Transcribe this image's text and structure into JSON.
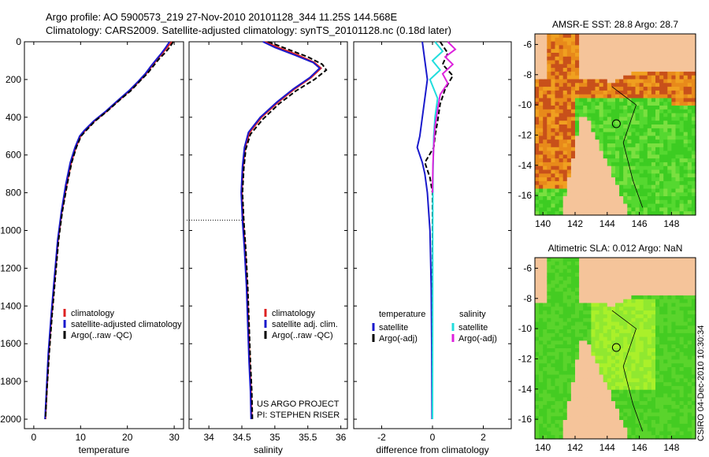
{
  "figure": {
    "title_line1": "Argo profile: AO 5900573_219 27-Nov-2010 20101128_344 11.25S 144.568E",
    "title_line2": "Climatology: CARS2009. Satellite-adjusted climatology: synTS_20101128.nc (0.18d later)",
    "side_label": "CSIRO 04-Dec-2010 10:30:34",
    "project_line1": "US ARGO PROJECT",
    "project_line2": "PI: STEPHEN RISER"
  },
  "colors": {
    "climatology": "#dd2222",
    "satellite": "#1a1acc",
    "argo": "#000000",
    "satellite_sal": "#22dddd",
    "argo_sal": "#dd22dd",
    "land": "#f5c49a",
    "sea_warm": "#e07a14",
    "sea_green": "#33cc22"
  },
  "chart_data": [
    {
      "type": "line",
      "id": "temperature",
      "xlabel": "temperature",
      "ylabel": "",
      "xlim": [
        -2,
        32
      ],
      "ylim": [
        0,
        2050
      ],
      "xticks": [
        "0",
        "10",
        "20",
        "30"
      ],
      "xtick_values": [
        0,
        10,
        20,
        30
      ],
      "yticks": [
        "0",
        "200",
        "400",
        "600",
        "800",
        "1000",
        "1200",
        "1400",
        "1600",
        "1800",
        "2000"
      ],
      "ytick_values": [
        0,
        200,
        400,
        600,
        800,
        1000,
        1200,
        1400,
        1600,
        1800,
        2000
      ],
      "legend": [
        "climatology",
        "satellite-adjusted climatology",
        "Argo(..raw -QC)"
      ],
      "series": [
        {
          "name": "climatology",
          "color_key": "climatology",
          "dash": false,
          "points": [
            [
              29.5,
              0
            ],
            [
              28.5,
              30
            ],
            [
              27.5,
              60
            ],
            [
              26.5,
              90
            ],
            [
              25.2,
              130
            ],
            [
              24.0,
              170
            ],
            [
              22.5,
              210
            ],
            [
              20.5,
              260
            ],
            [
              18.2,
              310
            ],
            [
              15.5,
              370
            ],
            [
              13.0,
              420
            ],
            [
              11.0,
              470
            ],
            [
              10.0,
              500
            ],
            [
              9.0,
              560
            ],
            [
              8.0,
              640
            ],
            [
              7.0,
              760
            ],
            [
              6.0,
              900
            ],
            [
              5.2,
              1050
            ],
            [
              4.5,
              1250
            ],
            [
              3.8,
              1450
            ],
            [
              3.2,
              1650
            ],
            [
              2.8,
              1850
            ],
            [
              2.5,
              2000
            ]
          ]
        },
        {
          "name": "satellite-adjusted climatology",
          "color_key": "satellite",
          "dash": false,
          "points": [
            [
              29.0,
              0
            ],
            [
              28.2,
              30
            ],
            [
              27.3,
              60
            ],
            [
              26.3,
              90
            ],
            [
              25.0,
              130
            ],
            [
              23.8,
              170
            ],
            [
              22.3,
              210
            ],
            [
              20.3,
              260
            ],
            [
              18.0,
              310
            ],
            [
              15.3,
              370
            ],
            [
              12.8,
              420
            ],
            [
              10.8,
              470
            ],
            [
              9.8,
              500
            ],
            [
              8.8,
              560
            ],
            [
              7.8,
              640
            ],
            [
              6.8,
              760
            ],
            [
              5.9,
              900
            ],
            [
              5.1,
              1050
            ],
            [
              4.4,
              1250
            ],
            [
              3.7,
              1450
            ],
            [
              3.1,
              1650
            ],
            [
              2.7,
              1850
            ],
            [
              2.4,
              2000
            ]
          ]
        },
        {
          "name": "Argo(..raw -QC)",
          "color_key": "argo",
          "dash": true,
          "points": [
            [
              29.8,
              0
            ],
            [
              29.0,
              30
            ],
            [
              28.0,
              60
            ],
            [
              26.8,
              90
            ],
            [
              25.5,
              130
            ],
            [
              24.2,
              170
            ],
            [
              22.6,
              210
            ],
            [
              20.7,
              260
            ],
            [
              18.3,
              310
            ],
            [
              15.6,
              370
            ],
            [
              13.1,
              420
            ],
            [
              11.2,
              470
            ],
            [
              10.1,
              500
            ],
            [
              9.1,
              560
            ],
            [
              8.1,
              640
            ],
            [
              7.1,
              760
            ],
            [
              6.1,
              900
            ],
            [
              5.3,
              1050
            ],
            [
              4.6,
              1250
            ],
            [
              3.9,
              1450
            ],
            [
              3.3,
              1650
            ],
            [
              2.8,
              1850
            ],
            [
              2.5,
              2000
            ]
          ]
        }
      ]
    },
    {
      "type": "line",
      "id": "salinity",
      "xlabel": "salinity",
      "xlim": [
        33.7,
        36.1
      ],
      "ylim": [
        0,
        2050
      ],
      "xticks": [
        "34",
        "34.5",
        "35",
        "35.5",
        "36"
      ],
      "xtick_values": [
        34,
        34.5,
        35,
        35.5,
        36
      ],
      "legend": [
        "climatology",
        "satellite adj. clim.",
        "Argo(..raw -QC)"
      ],
      "ref_depth": 945,
      "series": [
        {
          "name": "climatology",
          "color_key": "climatology",
          "dash": false,
          "points": [
            [
              34.85,
              0
            ],
            [
              35.05,
              30
            ],
            [
              35.35,
              70
            ],
            [
              35.6,
              110
            ],
            [
              35.7,
              140
            ],
            [
              35.55,
              190
            ],
            [
              35.3,
              250
            ],
            [
              35.05,
              320
            ],
            [
              34.8,
              400
            ],
            [
              34.62,
              480
            ],
            [
              34.55,
              560
            ],
            [
              34.52,
              660
            ],
            [
              34.5,
              800
            ],
            [
              34.52,
              950
            ],
            [
              34.55,
              1100
            ],
            [
              34.58,
              1300
            ],
            [
              34.6,
              1500
            ],
            [
              34.62,
              1700
            ],
            [
              34.64,
              1850
            ],
            [
              34.65,
              2000
            ]
          ]
        },
        {
          "name": "satellite adj. clim.",
          "color_key": "satellite",
          "dash": false,
          "points": [
            [
              34.82,
              0
            ],
            [
              35.0,
              30
            ],
            [
              35.3,
              70
            ],
            [
              35.58,
              110
            ],
            [
              35.68,
              140
            ],
            [
              35.53,
              190
            ],
            [
              35.28,
              250
            ],
            [
              35.03,
              320
            ],
            [
              34.78,
              400
            ],
            [
              34.6,
              480
            ],
            [
              34.54,
              560
            ],
            [
              34.51,
              660
            ],
            [
              34.49,
              800
            ],
            [
              34.51,
              950
            ],
            [
              34.54,
              1100
            ],
            [
              34.57,
              1300
            ],
            [
              34.59,
              1500
            ],
            [
              34.61,
              1700
            ],
            [
              34.63,
              1850
            ],
            [
              34.64,
              2000
            ]
          ]
        },
        {
          "name": "Argo(..raw -QC)",
          "color_key": "argo",
          "dash": true,
          "points": [
            [
              34.9,
              0
            ],
            [
              35.2,
              40
            ],
            [
              35.5,
              80
            ],
            [
              35.72,
              120
            ],
            [
              35.78,
              150
            ],
            [
              35.6,
              200
            ],
            [
              35.32,
              260
            ],
            [
              35.06,
              330
            ],
            [
              34.82,
              410
            ],
            [
              34.63,
              490
            ],
            [
              34.56,
              570
            ],
            [
              34.53,
              670
            ],
            [
              34.51,
              800
            ],
            [
              34.53,
              950
            ],
            [
              34.56,
              1100
            ],
            [
              34.59,
              1300
            ],
            [
              34.61,
              1500
            ],
            [
              34.63,
              1700
            ],
            [
              34.65,
              1850
            ],
            [
              34.66,
              2000
            ]
          ]
        }
      ]
    },
    {
      "type": "line",
      "id": "difference",
      "xlabel": "difference from climatology",
      "xlim": [
        -3.1,
        3.1
      ],
      "ylim": [
        0,
        2050
      ],
      "xticks": [
        "-2",
        "0",
        "2"
      ],
      "xtick_values": [
        -2,
        0,
        2
      ],
      "legend_temperature_title": "temperature",
      "legend_temperature": [
        "satellite",
        "Argo(-adj)"
      ],
      "legend_salinity_title": "salinity",
      "legend_salinity": [
        "satellite",
        "Argo(-adj)"
      ],
      "series": [
        {
          "name": "temperature satellite",
          "color_key": "satellite",
          "dash": false,
          "points": [
            [
              -0.4,
              0
            ],
            [
              -0.3,
              100
            ],
            [
              -0.2,
              200
            ],
            [
              -0.3,
              300
            ],
            [
              -0.4,
              400
            ],
            [
              -0.5,
              500
            ],
            [
              -0.6,
              560
            ],
            [
              -0.4,
              640
            ],
            [
              -0.3,
              700
            ],
            [
              -0.2,
              800
            ],
            [
              -0.1,
              1000
            ],
            [
              -0.05,
              1300
            ],
            [
              -0.03,
              1600
            ],
            [
              -0.02,
              2000
            ]
          ]
        },
        {
          "name": "temperature Argo(-adj)",
          "color_key": "argo",
          "dash": true,
          "points": [
            [
              0.3,
              0
            ],
            [
              0.6,
              60
            ],
            [
              0.4,
              120
            ],
            [
              0.8,
              180
            ],
            [
              0.5,
              250
            ],
            [
              0.3,
              330
            ],
            [
              0.2,
              420
            ],
            [
              0.1,
              500
            ],
            [
              0.05,
              560
            ],
            [
              -0.3,
              640
            ],
            [
              -0.1,
              720
            ],
            [
              0.0,
              800
            ],
            [
              0.0,
              1000
            ],
            [
              0.0,
              2000
            ]
          ]
        },
        {
          "name": "salinity satellite",
          "color_key": "satellite_sal",
          "dash": false,
          "points": [
            [
              0.1,
              0
            ],
            [
              0.4,
              50
            ],
            [
              0.0,
              100
            ],
            [
              0.3,
              150
            ],
            [
              -0.1,
              200
            ],
            [
              0.2,
              300
            ],
            [
              0.1,
              400
            ],
            [
              0.05,
              500
            ],
            [
              0.02,
              700
            ],
            [
              0.01,
              1000
            ],
            [
              0.0,
              2000
            ]
          ]
        },
        {
          "name": "salinity Argo(-adj)",
          "color_key": "argo_sal",
          "dash": false,
          "points": [
            [
              0.6,
              0
            ],
            [
              0.9,
              40
            ],
            [
              0.5,
              80
            ],
            [
              0.8,
              120
            ],
            [
              0.4,
              170
            ],
            [
              0.6,
              220
            ],
            [
              0.3,
              280
            ],
            [
              0.2,
              360
            ],
            [
              0.1,
              450
            ],
            [
              0.05,
              550
            ],
            [
              0.02,
              650
            ],
            [
              0.0,
              800
            ]
          ]
        }
      ]
    }
  ],
  "maps": [
    {
      "id": "sst",
      "title": "AMSR-E SST: 28.8 Argo: 28.7",
      "xticks": [
        "140",
        "142",
        "144",
        "146",
        "148"
      ],
      "yticks": [
        "-6",
        "-8",
        "-10",
        "-12",
        "-14",
        "-16"
      ],
      "xlim": [
        139.5,
        149.5
      ],
      "ylim": [
        -17.3,
        -5.3
      ],
      "profile_lon": 144.568,
      "profile_lat": -11.25,
      "style": "sst"
    },
    {
      "id": "sla",
      "title": "Altimetric SLA: 0.012 Argo: NaN",
      "xticks": [
        "140",
        "142",
        "144",
        "146",
        "148"
      ],
      "yticks": [
        "-6",
        "-8",
        "-10",
        "-12",
        "-14",
        "-16"
      ],
      "xlim": [
        139.5,
        149.5
      ],
      "ylim": [
        -17.3,
        -5.3
      ],
      "profile_lon": 144.568,
      "profile_lat": -11.25,
      "style": "sla"
    }
  ]
}
